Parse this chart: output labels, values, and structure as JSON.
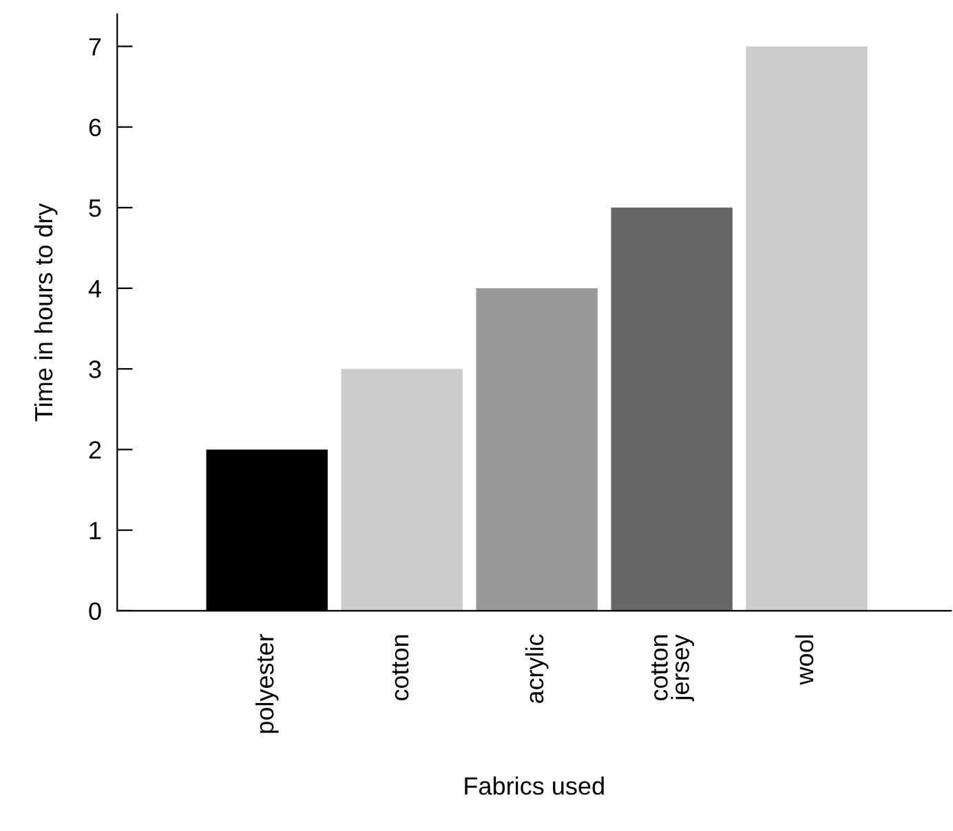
{
  "chart_data": {
    "type": "bar",
    "xlabel": "Fabrics used",
    "ylabel": "Time in hours to dry",
    "categories": [
      "polyester",
      "cotton",
      "acrylic",
      "cotton\njersey",
      "wool"
    ],
    "values": [
      2,
      3,
      4,
      5,
      7
    ],
    "colors": [
      "#000000",
      "#cccccc",
      "#999999",
      "#666666",
      "#cccccc"
    ],
    "ylim": [
      0,
      7.4
    ],
    "yticks": [
      0,
      1,
      2,
      3,
      4,
      5,
      6,
      7
    ],
    "grid": false,
    "legend": false
  }
}
